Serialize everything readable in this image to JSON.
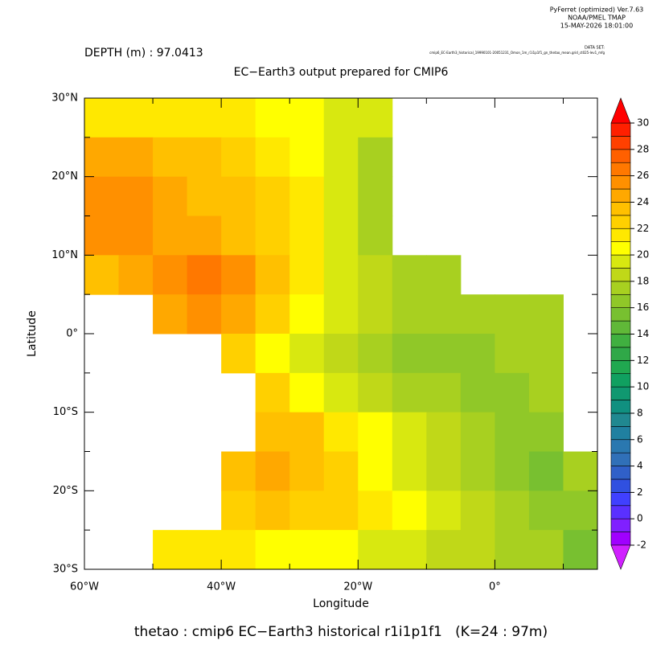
{
  "chart_data": {
    "type": "heatmap",
    "header_lines": [
      "PyFerret (optimized) Ver.7.63",
      "NOAA/PMEL TMAP",
      "15-MAY-2026 18:01:00"
    ],
    "dataset_label": "DATA SET:",
    "dataset": "cmip6_EC-Earth3_historical_19990101-20051231_Omon_1m_r1i1p1f1_gn_thetao_mean.grid_ct025-lev1_mfg",
    "depth_label": "DEPTH (m) : 97.0413",
    "title": "EC−Earth3 output prepared for CMIP6",
    "x_label": "Longitude",
    "y_label": "Latitude",
    "footer": "thetao : cmip6 EC−Earth3 historical r1i1p1f1   (K=24 : 97m)",
    "xlim": [
      -60,
      15
    ],
    "ylim": [
      -30,
      30
    ],
    "xticks": [
      {
        "value": -60,
        "label": "60°W"
      },
      {
        "value": -40,
        "label": "40°W"
      },
      {
        "value": -20,
        "label": "20°W"
      },
      {
        "value": 0,
        "label": "0°"
      }
    ],
    "xminor": [
      -50,
      -30,
      -10,
      10
    ],
    "yticks": [
      {
        "value": -30,
        "label": "30°S"
      },
      {
        "value": -20,
        "label": "20°S"
      },
      {
        "value": -10,
        "label": "10°S"
      },
      {
        "value": 0,
        "label": "0°"
      },
      {
        "value": 10,
        "label": "10°N"
      },
      {
        "value": 20,
        "label": "20°N"
      },
      {
        "value": 30,
        "label": "30°N"
      }
    ],
    "yminor": [
      -25,
      -15,
      -5,
      5,
      15,
      25
    ],
    "x": [
      -57.5,
      -52.5,
      -47.5,
      -42.5,
      -37.5,
      -32.5,
      -27.5,
      -22.5,
      -17.5,
      -12.5,
      -7.5,
      -2.5,
      2.5,
      7.5,
      12.5
    ],
    "y": [
      27.5,
      22.5,
      17.5,
      12.5,
      7.5,
      2.5,
      -2.5,
      -7.5,
      -12.5,
      -17.5,
      -22.5,
      -27.5
    ],
    "values": [
      [
        21,
        21,
        21,
        21,
        21,
        20.5,
        20,
        19.5,
        19,
        null,
        null,
        null,
        null,
        null,
        null
      ],
      [
        24,
        24,
        23.5,
        23,
        22,
        21,
        20,
        19,
        17.5,
        null,
        null,
        null,
        null,
        null,
        null
      ],
      [
        25,
        25,
        24.5,
        23.5,
        23,
        22,
        21,
        19.5,
        17.5,
        null,
        null,
        null,
        null,
        null,
        null
      ],
      [
        25.5,
        25,
        24,
        24,
        23.5,
        22.5,
        21,
        19,
        17.5,
        null,
        null,
        null,
        null,
        null,
        null
      ],
      [
        23,
        24,
        25.5,
        26,
        25,
        23,
        21,
        19.5,
        18,
        17.5,
        17,
        null,
        null,
        null,
        null
      ],
      [
        null,
        null,
        24,
        25,
        24,
        22,
        20.5,
        19,
        18,
        17.5,
        17,
        17,
        17,
        17,
        null
      ],
      [
        null,
        null,
        null,
        null,
        22,
        20.5,
        19.5,
        18,
        17,
        16.5,
        16.5,
        16.5,
        17,
        17,
        null
      ],
      [
        null,
        null,
        null,
        null,
        null,
        22,
        20,
        19,
        18,
        17.5,
        17,
        16.5,
        16.5,
        17,
        null
      ],
      [
        null,
        null,
        null,
        null,
        null,
        23,
        23,
        21.5,
        20,
        19,
        18,
        17,
        16,
        16.5,
        null
      ],
      [
        null,
        null,
        null,
        null,
        23,
        24,
        23,
        22,
        20.5,
        19,
        18,
        17,
        16,
        15.5,
        17
      ],
      [
        null,
        null,
        null,
        null,
        22,
        23,
        22.5,
        22,
        21,
        20,
        19,
        18,
        17,
        16.5,
        16
      ],
      [
        null,
        null,
        21,
        21,
        21,
        20.5,
        20,
        20,
        19.5,
        19,
        18.5,
        18,
        17.5,
        17,
        15.5
      ]
    ],
    "colorbar": {
      "levels": [
        -2,
        -1,
        0,
        1,
        2,
        3,
        4,
        5,
        6,
        7,
        8,
        9,
        10,
        11,
        12,
        13,
        14,
        15,
        16,
        17,
        18,
        19,
        20,
        21,
        22,
        23,
        24,
        25,
        26,
        27,
        28,
        29,
        30
      ],
      "ticks": [
        -2,
        0,
        2,
        4,
        6,
        8,
        10,
        12,
        14,
        16,
        18,
        20,
        22,
        24,
        26,
        28,
        30
      ],
      "colors": [
        "#d020ff",
        "#a000ff",
        "#8020ff",
        "#5a30ff",
        "#4040ff",
        "#3050e0",
        "#3060c8",
        "#3070b8",
        "#2a78b0",
        "#2080a0",
        "#208890",
        "#109080",
        "#109870",
        "#10a060",
        "#20a850",
        "#30a848",
        "#40b040",
        "#60b838",
        "#78c030",
        "#90c828",
        "#a8d020",
        "#c0d818",
        "#d8e810",
        "#ffff00",
        "#ffe800",
        "#ffd000",
        "#ffc000",
        "#ffa800",
        "#ff9000",
        "#ff7800",
        "#ff6000",
        "#ff4000",
        "#ff2000",
        "#ff0000"
      ]
    }
  }
}
